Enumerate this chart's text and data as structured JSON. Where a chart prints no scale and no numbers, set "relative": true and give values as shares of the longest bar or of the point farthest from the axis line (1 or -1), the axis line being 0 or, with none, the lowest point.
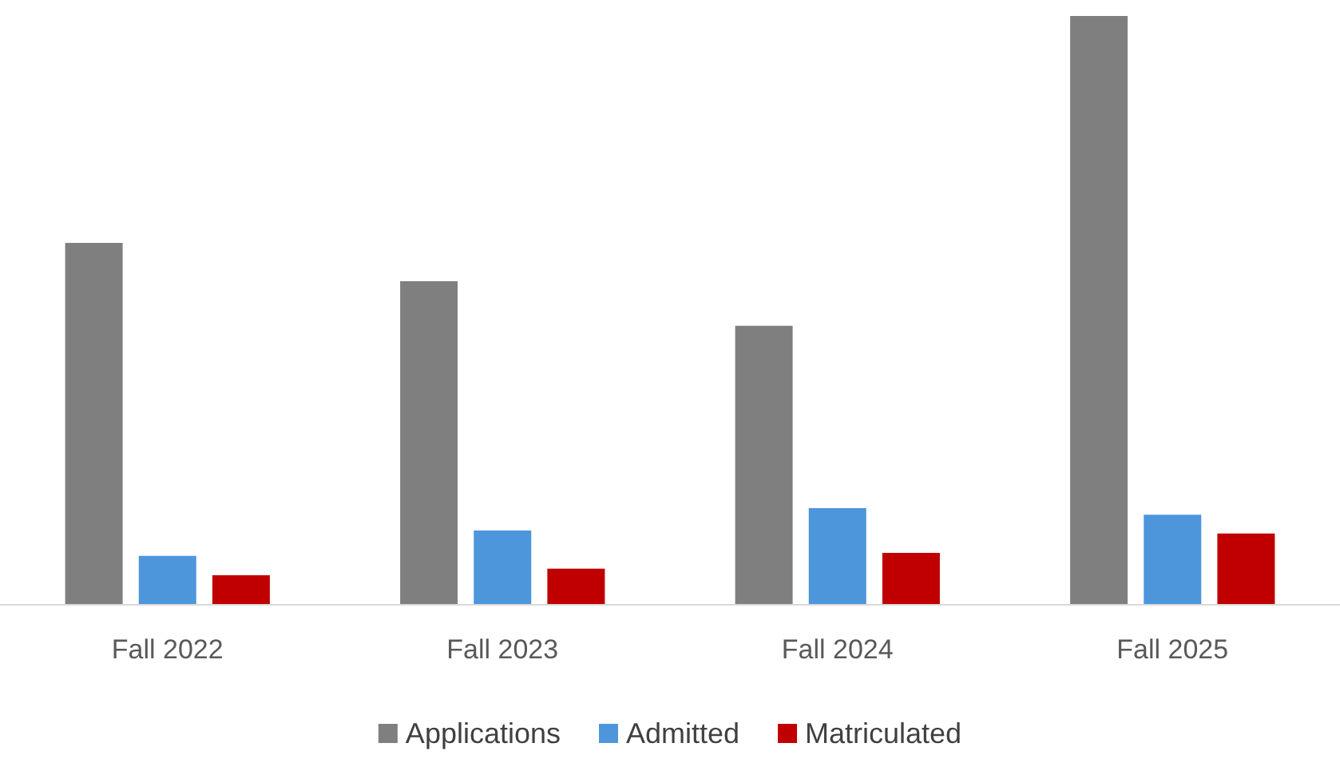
{
  "chart_data": {
    "type": "bar",
    "relative": true,
    "categories": [
      "Fall 2022",
      "Fall 2023",
      "Fall 2024",
      "Fall 2025"
    ],
    "series": [
      {
        "name": "Applications",
        "color": "#7f7f7f",
        "values": [
          0.614,
          0.549,
          0.473,
          1
        ]
      },
      {
        "name": "Admitted",
        "color": "#4e96dc",
        "values": [
          0.082,
          0.125,
          0.163,
          0.152
        ]
      },
      {
        "name": "Matriculated",
        "color": "#c00000",
        "values": [
          0.049,
          0.06,
          0.087,
          0.12
        ]
      }
    ],
    "legend": "bottom"
  }
}
